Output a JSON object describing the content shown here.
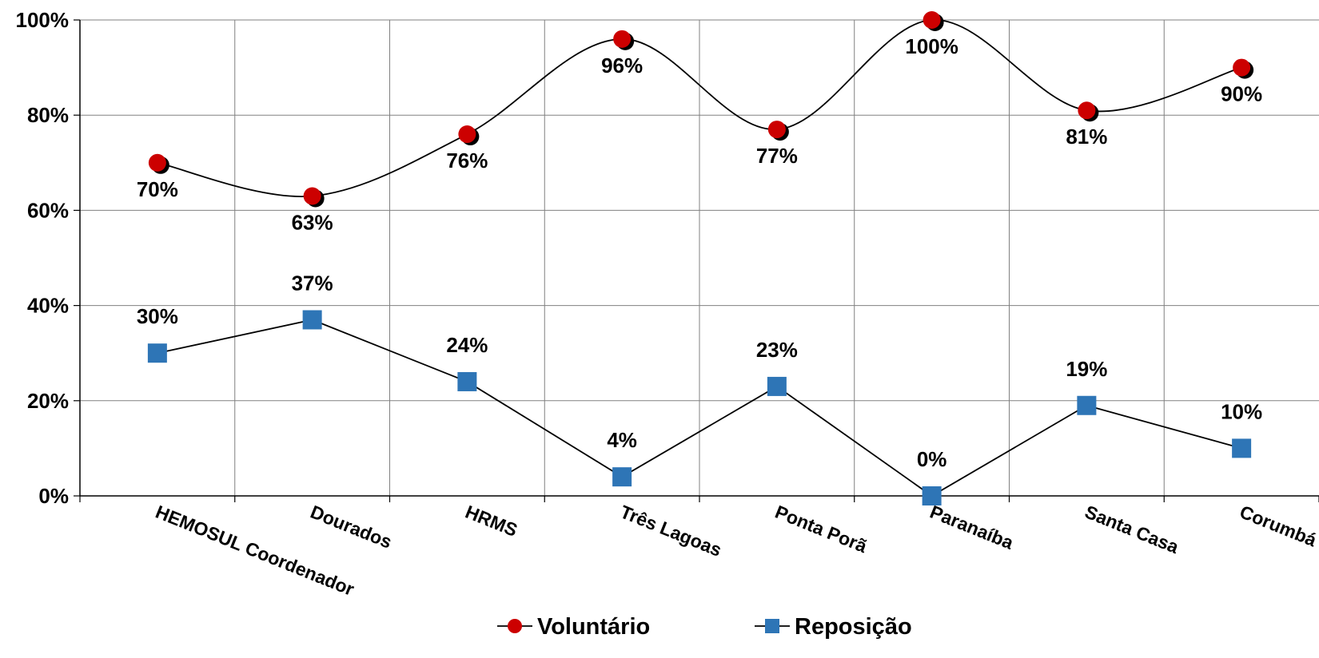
{
  "chart_data": {
    "type": "line",
    "categories": [
      "HEMOSUL Coordenador",
      "Dourados",
      "HRMS",
      "Três Lagoas",
      "Ponta Porã",
      "Paranaíba",
      "Santa Casa",
      "Corumbá"
    ],
    "series": [
      {
        "name": "Voluntário",
        "values": [
          70,
          63,
          76,
          96,
          77,
          100,
          81,
          90
        ],
        "labels": [
          "70%",
          "63%",
          "76%",
          "96%",
          "77%",
          "100%",
          "81%",
          "90%"
        ],
        "color": "#cc0000",
        "marker": "circle",
        "smooth": true
      },
      {
        "name": "Reposição",
        "values": [
          30,
          37,
          24,
          4,
          23,
          0,
          19,
          10
        ],
        "labels": [
          "30%",
          "37%",
          "24%",
          "4%",
          "23%",
          "0%",
          "19%",
          "10%"
        ],
        "color": "#2e75b6",
        "marker": "square",
        "smooth": false
      }
    ],
    "yticks": [
      "0%",
      "20%",
      "40%",
      "60%",
      "80%",
      "100%"
    ],
    "ylim": [
      0,
      100
    ],
    "grid": true,
    "legend_position": "bottom"
  }
}
